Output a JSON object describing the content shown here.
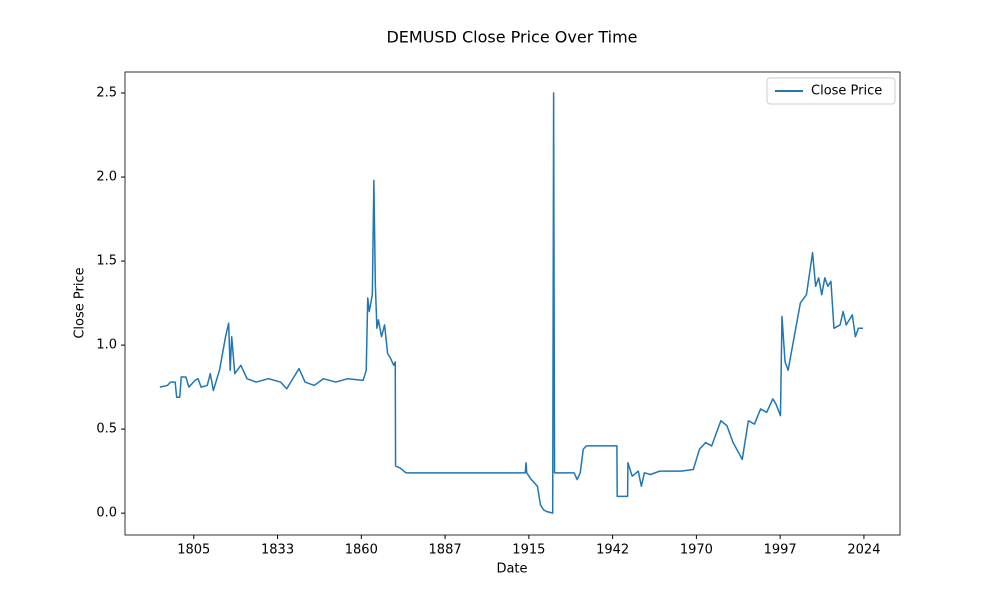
{
  "chart_data": {
    "type": "line",
    "title": "DEMUSD Close Price Over Time",
    "x_label": "Date",
    "y_label": "Close Price",
    "x": [
      1794.5,
      1797,
      1798,
      1799.5,
      1800,
      1801,
      1801.5,
      1803,
      1804,
      1806,
      1807,
      1808,
      1810,
      1811,
      1812,
      1814,
      1816,
      1817,
      1817.5,
      1818,
      1819,
      1821,
      1823,
      1826,
      1830,
      1834,
      1836,
      1838,
      1840,
      1842,
      1845,
      1848,
      1852,
      1856,
      1861,
      1862,
      1862.5,
      1863,
      1864,
      1864.5,
      1865,
      1865.5,
      1866,
      1867,
      1868,
      1869,
      1870,
      1871,
      1871.5,
      1871.6,
      1873,
      1875,
      1880,
      1890,
      1900,
      1910,
      1914,
      1914.3,
      1914.5,
      1916,
      1918,
      1919,
      1920,
      1921,
      1923,
      1923.3,
      1923.6,
      1925,
      1930,
      1931,
      1932,
      1933,
      1934,
      1938,
      1944,
      1944.1,
      1947.5,
      1947.6,
      1949,
      1951,
      1952,
      1953,
      1955,
      1958,
      1965,
      1969,
      1971,
      1973,
      1975,
      1978,
      1980,
      1982,
      1985,
      1987,
      1989,
      1991,
      1993,
      1995,
      1996,
      1997.5,
      1998,
      1999,
      2000,
      2002,
      2004,
      2006,
      2008,
      2009,
      2010,
      2011,
      2012,
      2013,
      2014,
      2015,
      2017,
      2018,
      2019,
      2020,
      2021,
      2022,
      2023,
      2024.5
    ],
    "series": [
      {
        "name": "Close Price",
        "color": "#1f77b4",
        "values": [
          0.75,
          0.76,
          0.78,
          0.78,
          0.69,
          0.69,
          0.81,
          0.81,
          0.75,
          0.79,
          0.8,
          0.75,
          0.76,
          0.83,
          0.73,
          0.85,
          1.05,
          1.13,
          0.85,
          1.05,
          0.83,
          0.88,
          0.8,
          0.78,
          0.8,
          0.78,
          0.74,
          0.8,
          0.86,
          0.78,
          0.76,
          0.8,
          0.78,
          0.8,
          0.79,
          0.85,
          1.28,
          1.2,
          1.3,
          1.98,
          1.35,
          1.1,
          1.15,
          1.05,
          1.12,
          0.95,
          0.92,
          0.88,
          0.9,
          0.28,
          0.27,
          0.24,
          0.24,
          0.24,
          0.24,
          0.24,
          0.24,
          0.3,
          0.24,
          0.2,
          0.16,
          0.05,
          0.02,
          0.01,
          0.0,
          2.5,
          0.24,
          0.24,
          0.24,
          0.2,
          0.24,
          0.38,
          0.4,
          0.4,
          0.4,
          0.1,
          0.1,
          0.3,
          0.22,
          0.25,
          0.16,
          0.24,
          0.23,
          0.25,
          0.25,
          0.26,
          0.38,
          0.42,
          0.4,
          0.55,
          0.52,
          0.42,
          0.32,
          0.55,
          0.53,
          0.62,
          0.6,
          0.68,
          0.65,
          0.58,
          1.17,
          0.9,
          0.85,
          1.05,
          1.25,
          1.3,
          1.55,
          1.35,
          1.4,
          1.3,
          1.4,
          1.35,
          1.38,
          1.1,
          1.12,
          1.2,
          1.12,
          1.15,
          1.18,
          1.05,
          1.1,
          1.1
        ]
      }
    ],
    "xlim": [
      1783.1,
      2036.6
    ],
    "xticks": [
      {
        "value": 1805.6,
        "label": "1805"
      },
      {
        "value": 1833.0,
        "label": "1833"
      },
      {
        "value": 1860.4,
        "label": "1860"
      },
      {
        "value": 1887.8,
        "label": "1887"
      },
      {
        "value": 1915.2,
        "label": "1915"
      },
      {
        "value": 1942.6,
        "label": "1942"
      },
      {
        "value": 1970.0,
        "label": "1970"
      },
      {
        "value": 1997.4,
        "label": "1997"
      },
      {
        "value": 2024.8,
        "label": "2024"
      }
    ],
    "ylim": [
      -0.13,
      2.625
    ],
    "yticks": [
      {
        "value": 0,
        "label": "0.0"
      },
      0.5,
      {
        "value": 1,
        "label": "1.0"
      },
      1.5,
      {
        "value": 2,
        "label": "2.0"
      },
      2.5
    ],
    "legend": "upper right"
  }
}
